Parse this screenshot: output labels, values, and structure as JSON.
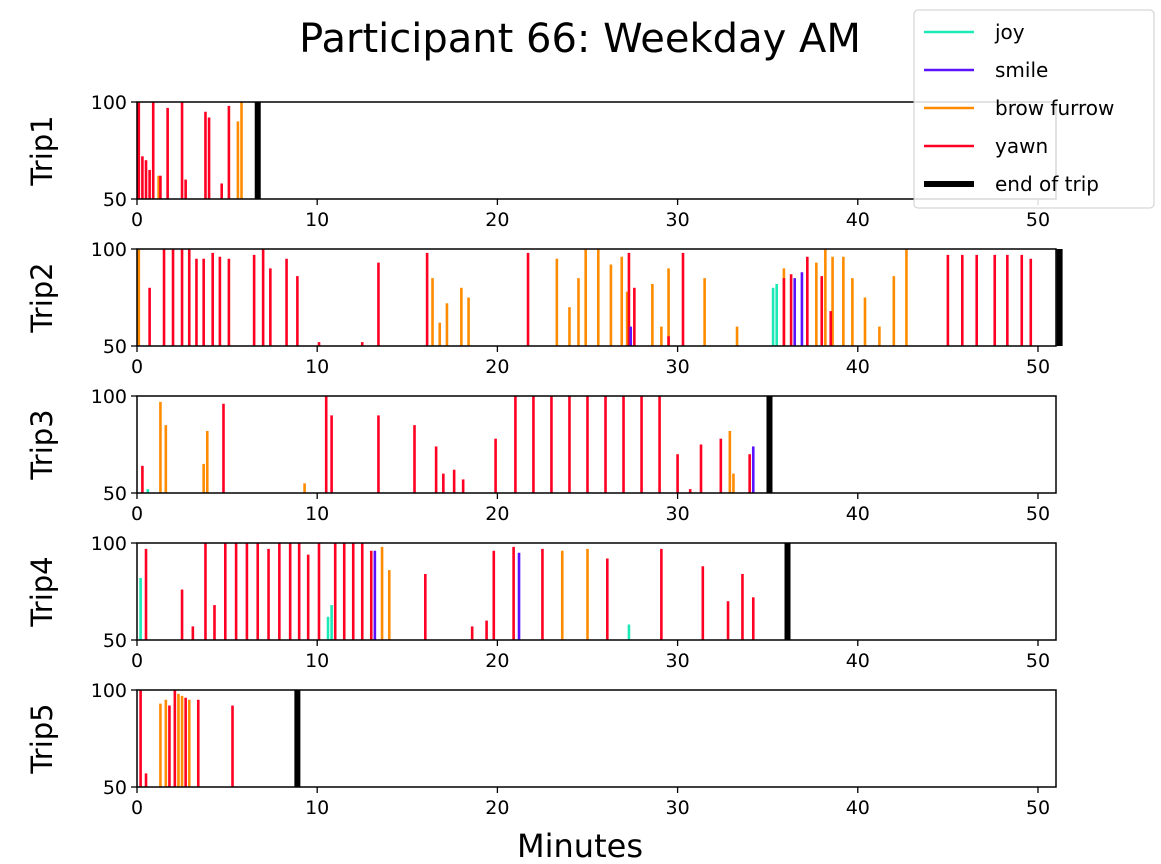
{
  "chart_data": {
    "type": "line",
    "title": "Participant 66: Weekday AM",
    "xlabel": "Minutes",
    "xlim": [
      0,
      51
    ],
    "ylim": [
      50,
      100
    ],
    "x_ticks": [
      0,
      10,
      20,
      30,
      40,
      50
    ],
    "y_ticks": [
      50,
      100
    ],
    "legend": {
      "placement": "top-right",
      "entries": [
        {
          "name": "joy",
          "color": "#1de9b6"
        },
        {
          "name": "smile",
          "color": "#5b12ff"
        },
        {
          "name": "brow furrow",
          "color": "#ff8c00"
        },
        {
          "name": "yawn",
          "color": "#ff0022"
        },
        {
          "name": "end of trip",
          "color": "#000000"
        }
      ]
    },
    "panels": [
      {
        "ylabel": "Trip1",
        "end_of_trip": 6.7,
        "joy": [],
        "smile": [],
        "brow_furrow": [
          [
            1.2,
            50,
            62
          ],
          [
            5.6,
            50,
            90
          ],
          [
            5.8,
            50,
            100
          ]
        ],
        "yawn": [
          [
            0.1,
            50,
            100
          ],
          [
            0.3,
            50,
            72
          ],
          [
            0.5,
            50,
            70
          ],
          [
            0.7,
            50,
            65
          ],
          [
            0.9,
            50,
            100
          ],
          [
            1.3,
            50,
            62
          ],
          [
            1.7,
            50,
            97
          ],
          [
            2.5,
            50,
            100
          ],
          [
            2.7,
            50,
            60
          ],
          [
            3.8,
            50,
            95
          ],
          [
            4.0,
            50,
            92
          ],
          [
            4.7,
            50,
            58
          ],
          [
            5.1,
            50,
            98
          ]
        ]
      },
      {
        "ylabel": "Trip2",
        "end_of_trip": 51.2,
        "joy": [
          [
            35.3,
            50,
            80
          ],
          [
            35.5,
            50,
            82
          ]
        ],
        "smile": [
          [
            27.4,
            50,
            60
          ],
          [
            36.5,
            50,
            85
          ],
          [
            36.9,
            50,
            88
          ]
        ],
        "brow_furrow": [
          [
            0.1,
            50,
            100
          ],
          [
            16.4,
            50,
            85
          ],
          [
            16.8,
            50,
            62
          ],
          [
            17.2,
            50,
            72
          ],
          [
            18.0,
            50,
            80
          ],
          [
            18.4,
            50,
            75
          ],
          [
            23.3,
            50,
            95
          ],
          [
            24.0,
            50,
            70
          ],
          [
            24.5,
            50,
            85
          ],
          [
            24.9,
            50,
            100
          ],
          [
            25.6,
            50,
            100
          ],
          [
            26.3,
            50,
            92
          ],
          [
            26.9,
            50,
            96
          ],
          [
            27.2,
            50,
            78
          ],
          [
            28.6,
            50,
            82
          ],
          [
            29.1,
            50,
            60
          ],
          [
            29.5,
            50,
            90
          ],
          [
            31.5,
            50,
            85
          ],
          [
            33.3,
            50,
            60
          ],
          [
            35.9,
            50,
            90
          ],
          [
            37.7,
            50,
            93
          ],
          [
            38.2,
            50,
            100
          ],
          [
            38.6,
            50,
            96
          ],
          [
            39.2,
            50,
            96
          ],
          [
            39.7,
            50,
            85
          ],
          [
            40.4,
            50,
            75
          ],
          [
            41.2,
            50,
            60
          ],
          [
            42.0,
            50,
            86
          ],
          [
            42.7,
            50,
            100
          ]
        ],
        "yawn": [
          [
            0.7,
            50,
            80
          ],
          [
            1.5,
            50,
            100
          ],
          [
            2.0,
            50,
            100
          ],
          [
            2.5,
            50,
            100
          ],
          [
            2.9,
            50,
            100
          ],
          [
            3.3,
            50,
            95
          ],
          [
            3.7,
            50,
            95
          ],
          [
            4.2,
            50,
            98
          ],
          [
            4.6,
            50,
            96
          ],
          [
            5.1,
            50,
            95
          ],
          [
            6.5,
            50,
            97
          ],
          [
            7.0,
            50,
            100
          ],
          [
            7.4,
            50,
            90
          ],
          [
            8.3,
            50,
            95
          ],
          [
            8.9,
            50,
            86
          ],
          [
            10.1,
            50,
            52
          ],
          [
            12.5,
            50,
            52
          ],
          [
            13.4,
            50,
            93
          ],
          [
            16.1,
            50,
            98
          ],
          [
            21.7,
            50,
            98
          ],
          [
            27.3,
            50,
            98
          ],
          [
            27.6,
            50,
            80
          ],
          [
            29.5,
            50,
            55
          ],
          [
            30.3,
            50,
            98
          ],
          [
            35.9,
            50,
            85
          ],
          [
            36.3,
            50,
            87
          ],
          [
            37.2,
            50,
            96
          ],
          [
            38.0,
            50,
            86
          ],
          [
            38.5,
            50,
            68
          ],
          [
            45.0,
            50,
            97
          ],
          [
            45.8,
            50,
            97
          ],
          [
            46.6,
            50,
            97
          ],
          [
            47.6,
            50,
            97
          ],
          [
            48.3,
            50,
            97
          ],
          [
            49.1,
            50,
            97
          ],
          [
            49.6,
            50,
            95
          ]
        ]
      },
      {
        "ylabel": "Trip3",
        "end_of_trip": 35.1,
        "joy": [
          [
            0.6,
            50,
            52
          ]
        ],
        "smile": [
          [
            34.2,
            50,
            74
          ]
        ],
        "brow_furrow": [
          [
            1.3,
            50,
            97
          ],
          [
            1.6,
            50,
            85
          ],
          [
            3.7,
            50,
            65
          ],
          [
            3.9,
            50,
            82
          ],
          [
            9.3,
            50,
            55
          ],
          [
            32.9,
            50,
            82
          ],
          [
            33.1,
            50,
            60
          ]
        ],
        "yawn": [
          [
            0.3,
            50,
            64
          ],
          [
            4.8,
            50,
            96
          ],
          [
            10.5,
            50,
            100
          ],
          [
            10.8,
            50,
            90
          ],
          [
            13.4,
            50,
            90
          ],
          [
            15.4,
            50,
            85
          ],
          [
            16.6,
            50,
            74
          ],
          [
            17.0,
            50,
            60
          ],
          [
            17.6,
            50,
            62
          ],
          [
            18.1,
            50,
            57
          ],
          [
            19.9,
            50,
            78
          ],
          [
            21.0,
            50,
            100
          ],
          [
            22.0,
            50,
            100
          ],
          [
            23.0,
            50,
            100
          ],
          [
            24.0,
            50,
            100
          ],
          [
            25.0,
            50,
            100
          ],
          [
            26.0,
            50,
            100
          ],
          [
            27.0,
            50,
            100
          ],
          [
            28.0,
            50,
            100
          ],
          [
            29.0,
            50,
            100
          ],
          [
            30.0,
            50,
            70
          ],
          [
            30.7,
            50,
            52
          ],
          [
            31.3,
            50,
            75
          ],
          [
            32.4,
            50,
            78
          ],
          [
            34.0,
            50,
            70
          ]
        ]
      },
      {
        "ylabel": "Trip4",
        "end_of_trip": 36.1,
        "joy": [
          [
            0.2,
            50,
            82
          ],
          [
            10.6,
            50,
            62
          ],
          [
            10.8,
            50,
            68
          ],
          [
            27.3,
            50,
            58
          ]
        ],
        "smile": [
          [
            13.2,
            50,
            96
          ],
          [
            21.2,
            50,
            95
          ]
        ],
        "brow_furrow": [
          [
            13.6,
            50,
            98
          ],
          [
            14.0,
            50,
            86
          ],
          [
            23.6,
            50,
            96
          ],
          [
            25.0,
            50,
            97
          ]
        ],
        "yawn": [
          [
            0.5,
            50,
            97
          ],
          [
            2.5,
            50,
            76
          ],
          [
            3.1,
            50,
            57
          ],
          [
            3.8,
            50,
            100
          ],
          [
            4.3,
            50,
            68
          ],
          [
            4.9,
            50,
            100
          ],
          [
            5.5,
            50,
            100
          ],
          [
            6.1,
            50,
            100
          ],
          [
            6.7,
            50,
            100
          ],
          [
            7.3,
            50,
            97
          ],
          [
            7.9,
            50,
            100
          ],
          [
            8.5,
            50,
            100
          ],
          [
            9.0,
            50,
            100
          ],
          [
            9.5,
            50,
            94
          ],
          [
            10.1,
            50,
            100
          ],
          [
            11.0,
            50,
            100
          ],
          [
            11.5,
            50,
            100
          ],
          [
            12.0,
            50,
            100
          ],
          [
            12.5,
            50,
            100
          ],
          [
            13.0,
            50,
            96
          ],
          [
            16.0,
            50,
            84
          ],
          [
            18.6,
            50,
            57
          ],
          [
            19.4,
            50,
            60
          ],
          [
            19.8,
            50,
            96
          ],
          [
            20.9,
            50,
            98
          ],
          [
            22.5,
            50,
            97
          ],
          [
            26.1,
            50,
            92
          ],
          [
            29.1,
            50,
            97
          ],
          [
            31.4,
            50,
            88
          ],
          [
            32.8,
            50,
            70
          ],
          [
            33.6,
            50,
            84
          ],
          [
            34.2,
            50,
            72
          ]
        ]
      },
      {
        "ylabel": "Trip5",
        "end_of_trip": 8.9,
        "joy": [],
        "smile": [],
        "brow_furrow": [
          [
            1.3,
            50,
            93
          ],
          [
            1.6,
            50,
            95
          ],
          [
            2.3,
            50,
            98
          ],
          [
            2.5,
            50,
            97
          ],
          [
            2.9,
            50,
            95
          ]
        ],
        "yawn": [
          [
            0.2,
            50,
            100
          ],
          [
            0.5,
            50,
            57
          ],
          [
            1.8,
            50,
            92
          ],
          [
            2.1,
            50,
            100
          ],
          [
            2.7,
            50,
            96
          ],
          [
            3.4,
            50,
            95
          ],
          [
            5.3,
            50,
            92
          ]
        ]
      }
    ]
  }
}
